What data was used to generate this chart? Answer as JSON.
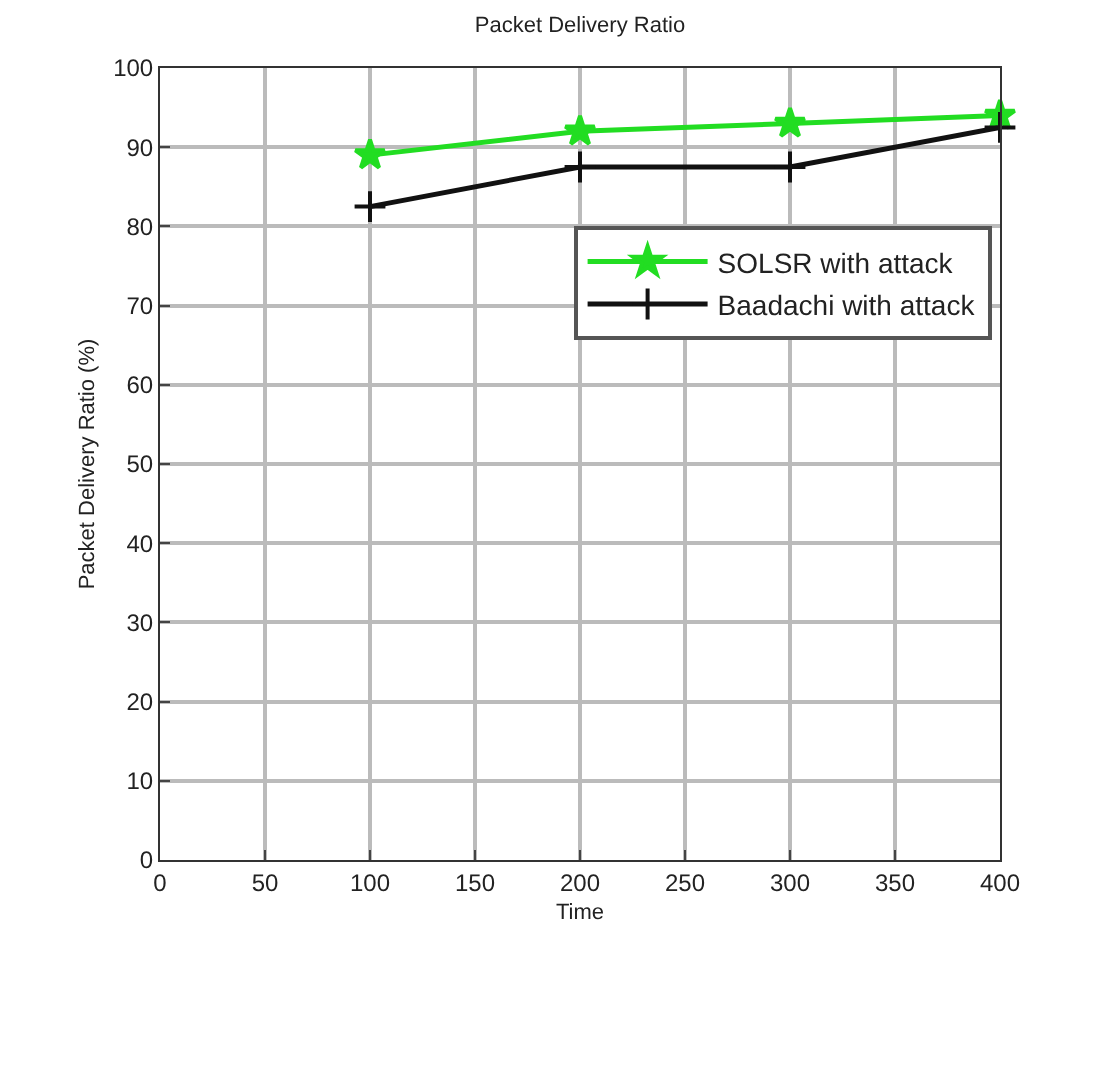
{
  "chart_data": {
    "type": "line",
    "title": "Packet Delivery Ratio",
    "xlabel": "Time",
    "ylabel": "Packet Delivery Ratio (%)",
    "x": [
      100,
      200,
      300,
      400
    ],
    "series": [
      {
        "name": "SOLSR with attack",
        "color": "#22dd22",
        "values": [
          89,
          92,
          93,
          94
        ],
        "marker": "star"
      },
      {
        "name": "Baadachi with attack",
        "color": "#111111",
        "values": [
          82.5,
          87.5,
          87.5,
          92.5
        ],
        "marker": "cross"
      }
    ],
    "xlim": [
      0,
      400
    ],
    "xticks": [
      0,
      50,
      100,
      150,
      200,
      250,
      300,
      350,
      400
    ],
    "ylim": [
      0,
      100
    ],
    "yticks": [
      0,
      10,
      20,
      30,
      40,
      50,
      60,
      70,
      80,
      90,
      100
    ],
    "grid": true,
    "legend": "top right",
    "line_style": "solid"
  }
}
